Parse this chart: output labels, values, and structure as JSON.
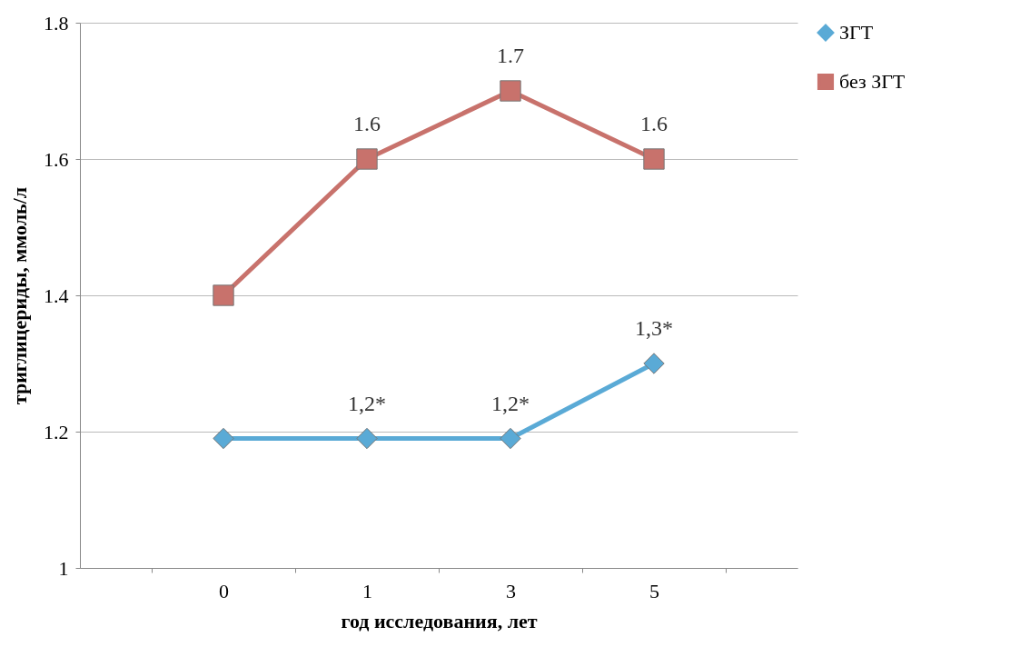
{
  "chart_data": {
    "type": "line",
    "xlabel": "год исследования, лет",
    "ylabel": "триглицериды, ммоль/л",
    "categories": [
      "0",
      "1",
      "3",
      "5"
    ],
    "ylim": [
      1,
      1.8
    ],
    "yticks": [
      1,
      1.2,
      1.4,
      1.6,
      1.8
    ],
    "grid": "y",
    "legend": "right",
    "series": [
      {
        "name": "ЗГТ",
        "color": "#5aaad6",
        "marker": "diamond",
        "values": [
          1.19,
          1.19,
          1.19,
          1.3
        ],
        "value_labels": [
          null,
          "1,2*",
          "1,2*",
          "1,3*"
        ]
      },
      {
        "name": "без ЗГТ",
        "color": "#c8726c",
        "marker": "square",
        "values": [
          1.4,
          1.6,
          1.7,
          1.6
        ],
        "value_labels": [
          null,
          "1.6",
          "1.7",
          "1.6"
        ]
      }
    ]
  }
}
